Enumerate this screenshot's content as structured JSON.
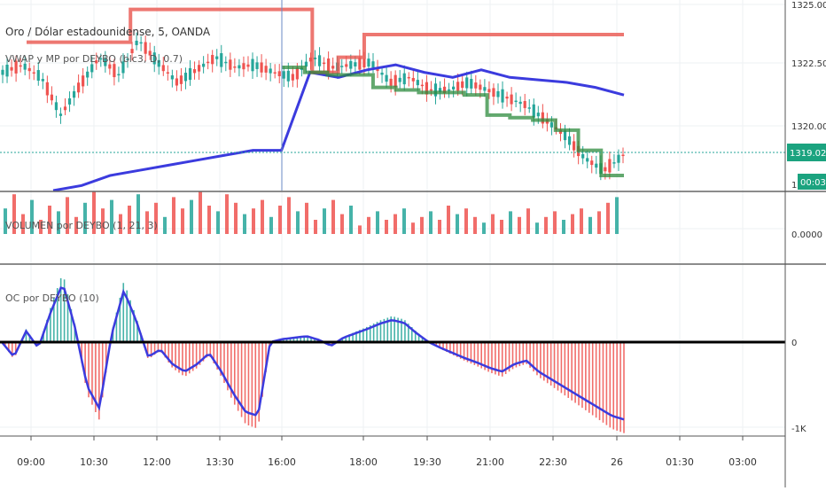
{
  "app": {
    "title": "Oro / Dólar estadounidense, 5, OANDA"
  },
  "colors": {
    "up": "#26a69a",
    "down": "#ef5350",
    "vwap": "#3b3bde",
    "green_line": "#2e8b3e",
    "red_line": "#e8554e",
    "grid": "#eef0f3",
    "price_label_bg": "#1ba37f"
  },
  "chart_data": [
    {
      "type": "line",
      "title": "Oro / Dólar estadounidense, 5, OANDA",
      "indicator_label": "VWAP y MP por DEYBO (blc3, D, 0.7)",
      "y_ticks": [
        "1325.000",
        "1322.500",
        "1320.000"
      ],
      "ylim": [
        1317.6,
        1325.0
      ],
      "last_price": "1319.026",
      "countdown": "00:03",
      "clipped_tick": "13",
      "series": [
        {
          "values": [
            1322.3,
            1322.6,
            1322.1,
            1320.6,
            1321.8,
            1322.9,
            1322.2,
            1323.6,
            1322.7,
            1321.9,
            1322.4,
            1322.9,
            1322.5,
            1322.6,
            1322.3,
            1322.1,
            1322.9,
            1322.5,
            1322.6,
            1322.7,
            1321.9,
            1322.1,
            1321.6,
            1321.6,
            1321.9,
            1321.6,
            1321.3,
            1321.0,
            1320.4,
            1319.8,
            1318.9,
            1318.4,
            1319.0
          ]
        },
        {
          "values": [
            1323.5,
            1323.5,
            1323.5,
            1323.5,
            1324.8,
            1324.8,
            1324.8,
            1324.8,
            1324.8,
            1324.8,
            1324.8,
            1322.3,
            1322.9,
            1323.8,
            1323.8,
            1323.8,
            1323.8,
            1323.8,
            1323.8,
            1323.8,
            1323.8,
            1323.8,
            1323.8,
            1323.8
          ]
        },
        {
          "values": [
            1322.5,
            1322.3,
            1322.2,
            1322.2,
            1321.7,
            1321.6,
            1321.5,
            1321.5,
            1321.4,
            1320.6,
            1320.5,
            1320.4,
            1320.0,
            1319.2,
            1318.2,
            1318.2
          ]
        },
        {
          "values": [
            1317.6,
            1317.8,
            1318.2,
            1318.4,
            1318.6,
            1318.8,
            1319.0,
            1319.2,
            1319.2,
            1322.3,
            1322.1,
            1322.4,
            1322.6,
            1322.3,
            1322.1,
            1322.4,
            1322.1,
            1322.0,
            1321.9,
            1321.7,
            1321.4
          ]
        }
      ]
    },
    {
      "type": "bar",
      "indicator_label": "VOLUMEN por DEYBO (1, 21, 3)",
      "y_ticks": [
        "0.0000"
      ],
      "values": [
        9,
        14,
        7,
        12,
        5,
        10,
        8,
        13,
        6,
        11,
        15,
        9,
        12,
        7,
        10,
        14,
        8,
        11,
        6,
        13,
        9,
        12,
        15,
        10,
        8,
        14,
        11,
        7,
        9,
        12,
        6,
        10,
        13,
        8,
        11,
        5,
        9,
        12,
        7,
        10,
        3,
        6,
        8,
        5,
        7,
        9,
        4,
        6,
        8,
        5,
        10,
        7,
        9,
        6,
        4,
        7,
        5,
        8,
        6,
        9,
        4,
        6,
        8,
        5,
        7,
        9,
        6,
        8,
        11,
        13
      ]
    },
    {
      "type": "area",
      "indicator_label": "OC por DEYBO (10)",
      "y_ticks": [
        "0",
        "-1K"
      ],
      "ylim": [
        -1100,
        900
      ],
      "values": [
        0,
        -200,
        150,
        -80,
        400,
        800,
        200,
        -600,
        -900,
        100,
        700,
        300,
        -200,
        -100,
        -300,
        -400,
        -300,
        -150,
        -400,
        -700,
        -950,
        -1000,
        0,
        40,
        60,
        80,
        30,
        -50,
        60,
        120,
        180,
        250,
        300,
        260,
        120,
        0,
        -80,
        -150,
        -220,
        -280,
        -350,
        -400,
        -300,
        -250,
        -400,
        -500,
        -600,
        -700,
        -800,
        -900,
        -1000,
        -1050
      ]
    }
  ],
  "x_axis": {
    "labels": [
      "09:00",
      "10:30",
      "12:00",
      "13:30",
      "16:00",
      "18:00",
      "19:30",
      "21:00",
      "22:30",
      "26",
      "01:30",
      "03:00"
    ]
  }
}
